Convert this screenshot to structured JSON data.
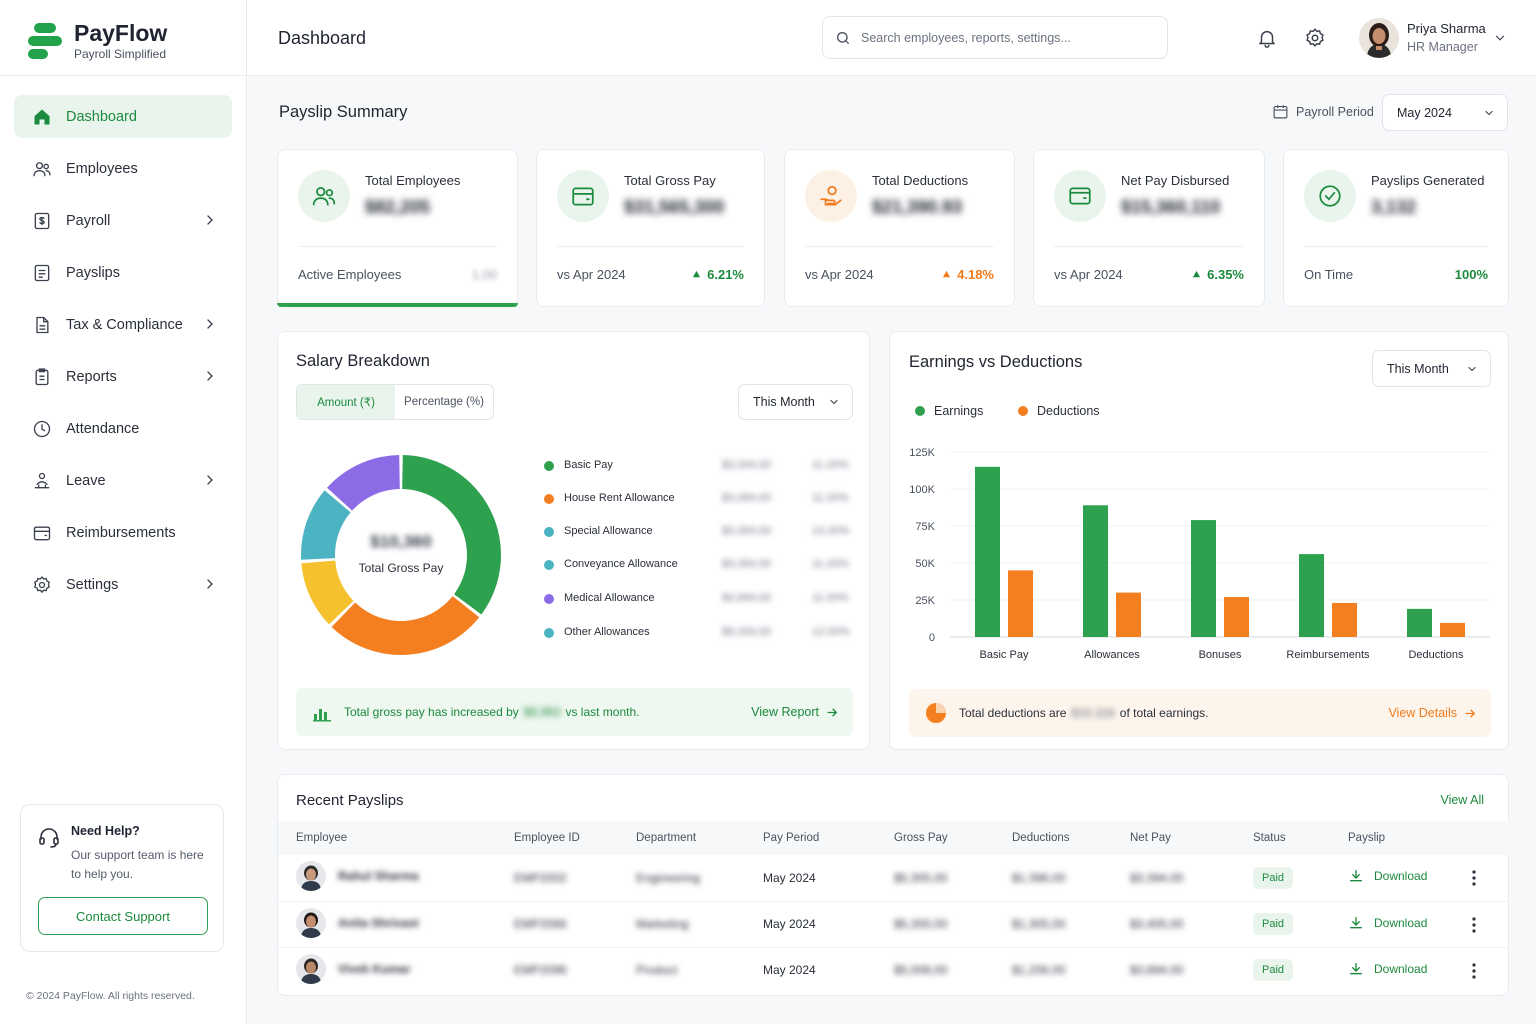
{
  "brand": {
    "name": "PayFlow",
    "tagline": "Payroll Simplified"
  },
  "nav": [
    {
      "label": "Dashboard",
      "icon": "home-icon",
      "active": true
    },
    {
      "label": "Employees",
      "icon": "users-icon"
    },
    {
      "label": "Payroll",
      "icon": "payroll-icon",
      "submenu": true
    },
    {
      "label": "Payslips",
      "icon": "payslip-icon"
    },
    {
      "label": "Tax & Compliance",
      "icon": "document-icon",
      "submenu": true
    },
    {
      "label": "Reports",
      "icon": "report-icon",
      "submenu": true
    },
    {
      "label": "Attendance",
      "icon": "clock-icon"
    },
    {
      "label": "Leave",
      "icon": "leave-icon",
      "submenu": true
    },
    {
      "label": "Reimbursements",
      "icon": "wallet-icon"
    },
    {
      "label": "Settings",
      "icon": "gear-icon",
      "submenu": true
    }
  ],
  "help": {
    "title": "Need Help?",
    "text": "Our support team is here to help you.",
    "button": "Contact Support"
  },
  "copyright": "© 2024 PayFlow. All rights reserved.",
  "header": {
    "title": "Dashboard",
    "search_placeholder": "Search employees, reports, settings...",
    "user": {
      "name": "Priya Sharma",
      "role": "HR Manager"
    }
  },
  "summary": {
    "title": "Payslip Summary",
    "period_label": "Payroll Period",
    "period_value": "May 2024",
    "kpis": [
      {
        "title": "Total Employees",
        "value": "$82,205",
        "foot": "Active Employees",
        "delta": "1,00",
        "delta_color": "#9aa0aa",
        "icon": "users-icon",
        "icon_bg": "#e9f5ec",
        "icon_color": "#1c8a3e",
        "highlight": true,
        "arrow": false
      },
      {
        "title": "Total Gross Pay",
        "value": "$31,565,300",
        "foot": "vs Apr 2024",
        "delta": "6.21%",
        "delta_color": "#1c8a3e",
        "icon": "wallet-icon",
        "icon_bg": "#e9f5ec",
        "icon_color": "#1c8a3e",
        "arrow": true
      },
      {
        "title": "Total Deductions",
        "value": "$21,390.93",
        "foot": "vs Apr 2024",
        "delta": "4.18%",
        "delta_color": "#f07b1c",
        "icon": "hand-coin-icon",
        "icon_bg": "#fdf0e4",
        "icon_color": "#f07b1c",
        "arrow": true
      },
      {
        "title": "Net Pay Disbursed",
        "value": "$15,360,110",
        "foot": "vs Apr 2024",
        "delta": "6.35%",
        "delta_color": "#1c8a3e",
        "icon": "card-icon",
        "icon_bg": "#e9f5ec",
        "icon_color": "#1c8a3e",
        "arrow": true
      },
      {
        "title": "Payslips Generated",
        "value": "3,132",
        "foot": "On Time",
        "delta": "100%",
        "delta_color": "#1c8a3e",
        "icon": "check-circle-icon",
        "icon_bg": "#e9f5ec",
        "icon_color": "#1c8a3e",
        "arrow": false
      }
    ]
  },
  "salary": {
    "title": "Salary Breakdown",
    "tab_amount": "Amount (₹)",
    "tab_percent": "Percentage (%)",
    "period": "This Month",
    "center_value": "$10,360",
    "center_label": "Total Gross Pay",
    "items": [
      {
        "label": "Basic Pay",
        "amount": "$3,344,00",
        "pct": "11.20%",
        "color": "#2ea14e",
        "share": 0.34
      },
      {
        "label": "House Rent Allowance",
        "amount": "$3,394,00",
        "pct": "11.20%",
        "color": "#f47f20",
        "share": 0.26
      },
      {
        "label": "Special Allowance",
        "amount": "$3,394,00",
        "pct": "14.20%",
        "color": "#4bb3c2",
        "share": 0.12
      },
      {
        "label": "Conveyance Allowance",
        "amount": "$3,394,00",
        "pct": "11.20%",
        "color": "#4bb3c2",
        "share": 0
      },
      {
        "label": "Medical Allowance",
        "amount": "$4,994,00",
        "pct": "11.00%",
        "color": "#8b6ce6",
        "share": 0.13
      },
      {
        "label": "Other Allowances",
        "amount": "$9,334,00",
        "pct": "12.00%",
        "color": "#4bb3c2",
        "share": 0
      }
    ],
    "donut_yellow": {
      "color": "#f5c12e",
      "share": 0.11
    },
    "note_prefix": "Total gross pay has increased by",
    "note_value": "$8,983",
    "note_suffix": "vs last month.",
    "link": "View Report"
  },
  "earnings": {
    "title": "Earnings vs Deductions",
    "period": "This Month",
    "legend_earn": "Earnings",
    "legend_ded": "Deductions",
    "note_prefix": "Total deductions are",
    "note_value": "$33,328",
    "note_suffix": "of total earnings.",
    "link": "View Details"
  },
  "chart_data": {
    "type": "bar",
    "categories": [
      "Basic Pay",
      "Allowances",
      "Bonuses",
      "Reimbursements",
      "Deductions"
    ],
    "series": [
      {
        "name": "Earnings",
        "color": "#2ea14e",
        "values": [
          115000,
          89000,
          79000,
          56000,
          19000
        ]
      },
      {
        "name": "Deductions",
        "color": "#f47f20",
        "values": [
          45000,
          30000,
          27000,
          23000,
          9500
        ]
      }
    ],
    "yticks": [
      "125K",
      "100K",
      "75K",
      "50K",
      "25K",
      "0"
    ],
    "ylim": [
      0,
      125000
    ],
    "grid": true,
    "legend": "top-left"
  },
  "recent": {
    "title": "Recent Payslips",
    "view_all": "View All",
    "columns": [
      "Employee",
      "Employee ID",
      "Department",
      "Pay Period",
      "Gross Pay",
      "Deductions",
      "Net Pay",
      "Status",
      "Payslip"
    ],
    "rows": [
      {
        "name": "Rahul Sharma",
        "id": "EMP2002",
        "dept": "Engineering",
        "period": "May 2024",
        "gross": "$5,305,00",
        "ded": "$1,396,00",
        "net": "$3,394,00",
        "status": "Paid",
        "action": "Download"
      },
      {
        "name": "Anita Shrivast",
        "id": "EMP2066",
        "dept": "Marketing",
        "period": "May 2024",
        "gross": "$5,300,00",
        "ded": "$1,305,00",
        "net": "$3,405,00",
        "status": "Paid",
        "action": "Download"
      },
      {
        "name": "Vivek Kumar",
        "id": "EMP2096",
        "dept": "Product",
        "period": "May 2024",
        "gross": "$5,008,00",
        "ded": "$1,206,00",
        "net": "$3,894,00",
        "status": "Paid",
        "action": "Download"
      }
    ]
  }
}
